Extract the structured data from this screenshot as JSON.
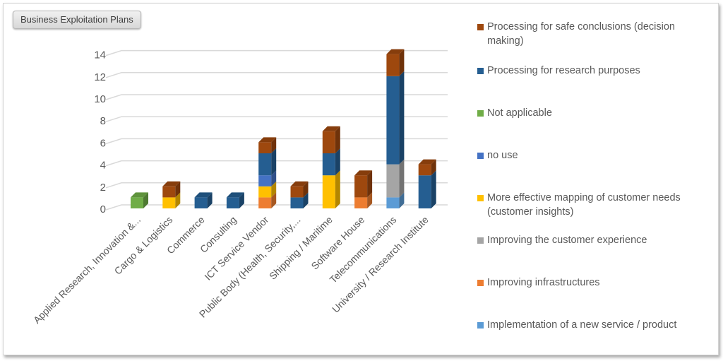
{
  "chart_data": {
    "type": "bar",
    "stacked": true,
    "style": "3d-column",
    "title": "Business Exploitation Plans",
    "xlabel": "",
    "ylabel": "",
    "ylim": [
      0,
      14
    ],
    "yticks": [
      0,
      2,
      4,
      6,
      8,
      10,
      12,
      14
    ],
    "grid": true,
    "legend_position": "right",
    "categories": [
      "Applied  Research, Innovation &...",
      "Cargo & Logistics",
      "Commerce",
      "Consulting",
      "ICT Service Vendor",
      "Public Body (Health, Security,...",
      "Shipping / Maritime",
      "Software House",
      "Telecommunications",
      "University / Research Institute"
    ],
    "series": [
      {
        "name": "Implementation of a new service / product",
        "color": "#5b9bd5",
        "values": [
          0,
          0,
          0,
          0,
          0,
          0,
          0,
          0,
          1,
          0
        ]
      },
      {
        "name": "Improving infrastructures",
        "color": "#ed7d31",
        "values": [
          0,
          0,
          0,
          0,
          1,
          0,
          0,
          1,
          0,
          0
        ]
      },
      {
        "name": "Improving the customer experience",
        "color": "#a5a5a5",
        "values": [
          0,
          0,
          0,
          0,
          0,
          0,
          0,
          0,
          3,
          0
        ]
      },
      {
        "name": "More effective mapping of customer needs (customer insights)",
        "color": "#ffc000",
        "values": [
          0,
          1,
          0,
          0,
          1,
          0,
          3,
          0,
          0,
          0
        ]
      },
      {
        "name": "no use",
        "color": "#4472c4",
        "values": [
          0,
          0,
          0,
          0,
          1,
          0,
          0,
          0,
          0,
          0
        ]
      },
      {
        "name": "Not applicable",
        "color": "#70ad47",
        "values": [
          1,
          0,
          0,
          0,
          0,
          0,
          0,
          0,
          0,
          0
        ]
      },
      {
        "name": "Processing for research purposes",
        "color": "#255e91",
        "values": [
          0,
          0,
          1,
          1,
          2,
          1,
          2,
          0,
          8,
          3
        ]
      },
      {
        "name": "Processing for safe conclusions (decision making)",
        "color": "#9e480e",
        "values": [
          0,
          1,
          0,
          0,
          1,
          1,
          2,
          2,
          2,
          1
        ]
      }
    ]
  }
}
